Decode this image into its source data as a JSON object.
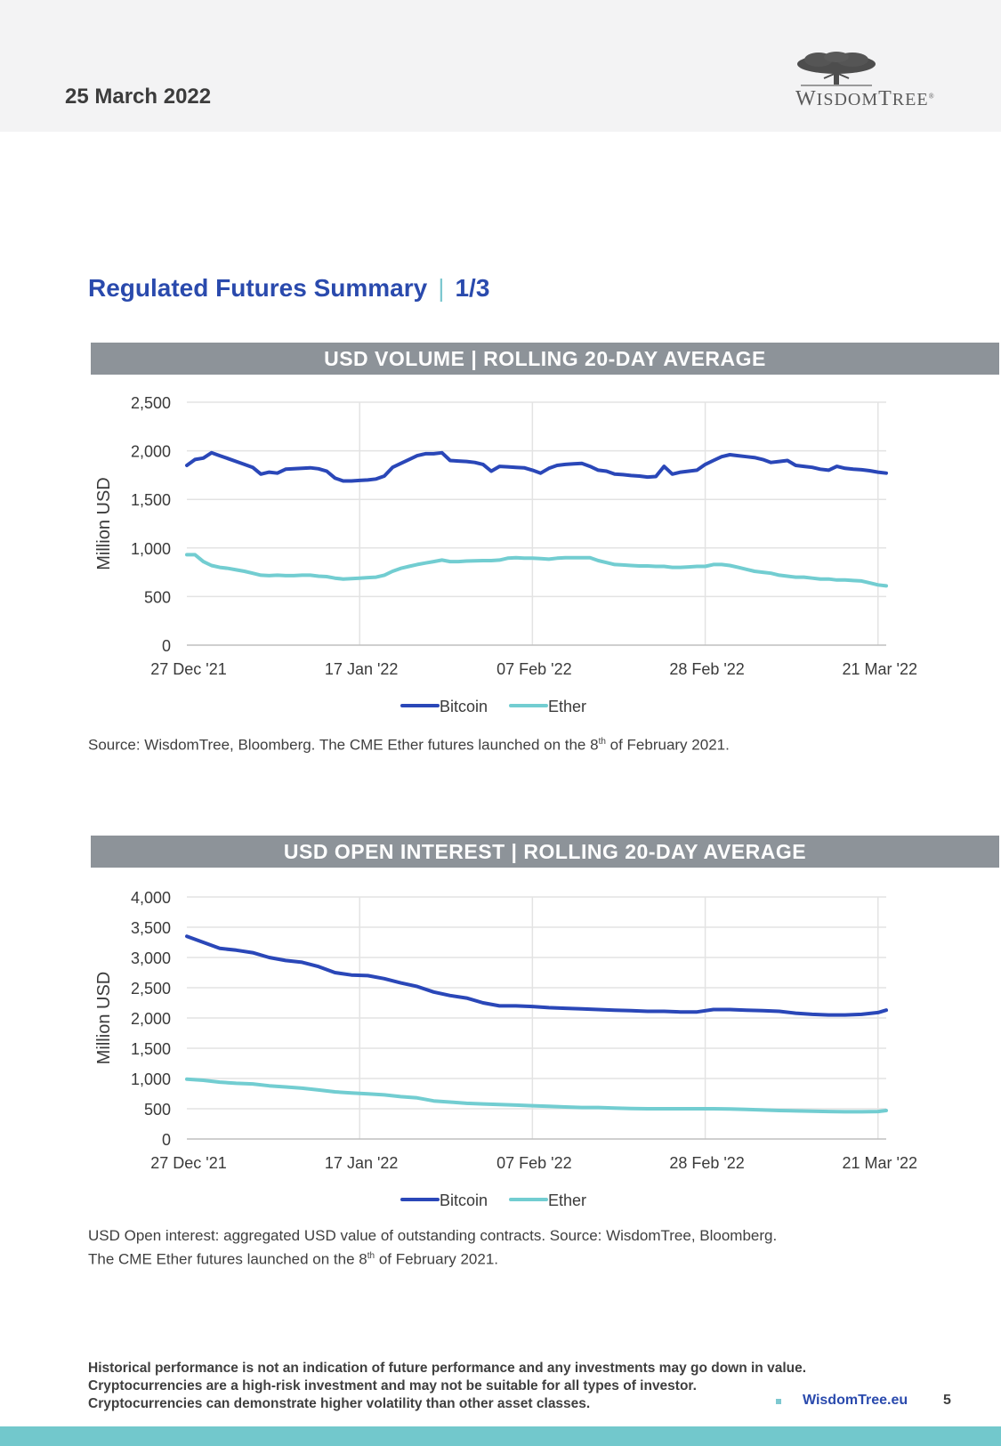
{
  "header": {
    "date": "25 March 2022",
    "logo_text_w": "W",
    "logo_text_isdom": "ISDOM",
    "logo_text_t": "T",
    "logo_text_ree": "REE",
    "logo_trademark": "®"
  },
  "section": {
    "title": "Regulated Futures Summary",
    "separator": "|",
    "page_fraction": "1/3"
  },
  "colors": {
    "bitcoin": "#2a47b8",
    "ether": "#72cdd1",
    "grid": "#e3e3e3",
    "axis": "#bfbfbf",
    "bar": "#8d9399"
  },
  "chart_data": [
    {
      "type": "line",
      "title": "USD VOLUME | ROLLING 20-DAY AVERAGE",
      "ylabel": "Million USD",
      "ylim": [
        0,
        2500
      ],
      "yticks": [
        0,
        500,
        1000,
        1500,
        2000,
        2500
      ],
      "ytick_labels": [
        "0",
        "500",
        "1,000",
        "1,500",
        "2,000",
        "2,500"
      ],
      "xlim": [
        0,
        85
      ],
      "xticks": [
        0,
        21,
        42,
        63,
        84
      ],
      "xtick_labels": [
        "27 Dec '21",
        "17 Jan '22",
        "07 Feb '22",
        "28 Feb '22",
        "21 Mar '22"
      ],
      "grid": true,
      "legend": "bottom-center",
      "series": [
        {
          "name": "Bitcoin",
          "x": [
            0,
            1,
            2,
            3,
            4,
            5,
            6,
            7,
            8,
            9,
            10,
            11,
            12,
            13,
            14,
            15,
            16,
            17,
            18,
            19,
            20,
            21,
            22,
            23,
            24,
            25,
            26,
            27,
            28,
            29,
            30,
            31,
            32,
            33,
            34,
            35,
            36,
            37,
            38,
            39,
            40,
            41,
            42,
            43,
            44,
            45,
            46,
            47,
            48,
            49,
            50,
            51,
            52,
            53,
            54,
            55,
            56,
            57,
            58,
            59,
            60,
            61,
            62,
            63,
            64,
            65,
            66,
            67,
            68,
            69,
            70,
            71,
            72,
            73,
            74,
            75,
            76,
            77,
            78,
            79,
            80,
            81,
            82,
            83,
            84,
            85
          ],
          "values": [
            1850,
            1910,
            1925,
            1980,
            1950,
            1920,
            1890,
            1860,
            1830,
            1760,
            1780,
            1770,
            1810,
            1815,
            1820,
            1825,
            1815,
            1790,
            1720,
            1690,
            1690,
            1695,
            1700,
            1710,
            1740,
            1830,
            1870,
            1910,
            1950,
            1970,
            1970,
            1980,
            1900,
            1895,
            1890,
            1880,
            1860,
            1790,
            1840,
            1835,
            1830,
            1825,
            1800,
            1770,
            1820,
            1850,
            1860,
            1865,
            1870,
            1840,
            1800,
            1790,
            1760,
            1755,
            1745,
            1740,
            1730,
            1735,
            1840,
            1760,
            1780,
            1790,
            1800,
            1860,
            1900,
            1940,
            1960,
            1950,
            1940,
            1930,
            1910,
            1880,
            1890,
            1900,
            1850,
            1840,
            1830,
            1810,
            1800,
            1840,
            1820,
            1810,
            1805,
            1795,
            1780,
            1770
          ]
        },
        {
          "name": "Ether",
          "x": [
            0,
            1,
            2,
            3,
            4,
            5,
            6,
            7,
            8,
            9,
            10,
            11,
            12,
            13,
            14,
            15,
            16,
            17,
            18,
            19,
            20,
            21,
            22,
            23,
            24,
            25,
            26,
            27,
            28,
            29,
            30,
            31,
            32,
            33,
            34,
            35,
            36,
            37,
            38,
            39,
            40,
            41,
            42,
            43,
            44,
            45,
            46,
            47,
            48,
            49,
            50,
            51,
            52,
            53,
            54,
            55,
            56,
            57,
            58,
            59,
            60,
            61,
            62,
            63,
            64,
            65,
            66,
            67,
            68,
            69,
            70,
            71,
            72,
            73,
            74,
            75,
            76,
            77,
            78,
            79,
            80,
            81,
            82,
            83,
            84,
            85
          ],
          "values": [
            930,
            930,
            860,
            820,
            800,
            790,
            775,
            760,
            740,
            720,
            715,
            720,
            715,
            715,
            720,
            720,
            710,
            705,
            690,
            680,
            685,
            690,
            695,
            700,
            720,
            760,
            790,
            810,
            830,
            845,
            860,
            875,
            860,
            860,
            865,
            868,
            870,
            870,
            875,
            895,
            900,
            895,
            895,
            890,
            885,
            895,
            900,
            900,
            900,
            900,
            870,
            850,
            830,
            825,
            820,
            815,
            815,
            810,
            810,
            800,
            800,
            805,
            810,
            810,
            830,
            830,
            820,
            800,
            780,
            760,
            750,
            740,
            720,
            710,
            700,
            700,
            690,
            680,
            680,
            670,
            670,
            665,
            660,
            640,
            620,
            610
          ]
        }
      ]
    },
    {
      "type": "line",
      "title": "USD OPEN INTEREST | ROLLING 20-DAY AVERAGE",
      "ylabel": "Million USD",
      "ylim": [
        0,
        4000
      ],
      "yticks": [
        0,
        500,
        1000,
        1500,
        2000,
        2500,
        3000,
        3500,
        4000
      ],
      "ytick_labels": [
        "0",
        "500",
        "1,000",
        "1,500",
        "2,000",
        "2,500",
        "3,000",
        "3,500",
        "4,000"
      ],
      "xlim": [
        0,
        85
      ],
      "xticks": [
        0,
        21,
        42,
        63,
        84
      ],
      "xtick_labels": [
        "27 Dec '21",
        "17 Jan '22",
        "07 Feb '22",
        "28 Feb '22",
        "21 Mar '22"
      ],
      "grid": true,
      "legend": "bottom-center",
      "series": [
        {
          "name": "Bitcoin",
          "x": [
            0,
            2,
            4,
            6,
            8,
            10,
            12,
            14,
            16,
            18,
            20,
            22,
            24,
            26,
            28,
            30,
            32,
            34,
            36,
            38,
            40,
            42,
            44,
            46,
            48,
            50,
            52,
            54,
            56,
            58,
            60,
            62,
            64,
            66,
            68,
            70,
            72,
            74,
            76,
            78,
            80,
            82,
            84,
            85
          ],
          "values": [
            3350,
            3250,
            3150,
            3120,
            3080,
            3000,
            2950,
            2920,
            2850,
            2750,
            2710,
            2700,
            2650,
            2580,
            2520,
            2430,
            2370,
            2330,
            2250,
            2200,
            2200,
            2190,
            2170,
            2160,
            2150,
            2140,
            2130,
            2120,
            2110,
            2110,
            2100,
            2100,
            2140,
            2140,
            2130,
            2120,
            2110,
            2080,
            2060,
            2050,
            2050,
            2060,
            2090,
            2130
          ]
        },
        {
          "name": "Ether",
          "x": [
            0,
            2,
            4,
            6,
            8,
            10,
            12,
            14,
            16,
            18,
            20,
            22,
            24,
            26,
            28,
            30,
            32,
            34,
            36,
            38,
            40,
            42,
            44,
            46,
            48,
            50,
            52,
            54,
            56,
            58,
            60,
            62,
            64,
            66,
            68,
            70,
            72,
            74,
            76,
            78,
            80,
            82,
            84,
            85
          ],
          "values": [
            990,
            970,
            940,
            920,
            910,
            880,
            860,
            840,
            810,
            780,
            760,
            745,
            730,
            700,
            680,
            630,
            610,
            590,
            580,
            570,
            560,
            550,
            540,
            530,
            520,
            520,
            510,
            505,
            500,
            500,
            500,
            500,
            500,
            495,
            490,
            480,
            470,
            465,
            460,
            455,
            450,
            450,
            455,
            470
          ]
        }
      ]
    }
  ],
  "notes": {
    "volume_source_a": "Source: WisdomTree, Bloomberg. The CME Ether futures launched on the 8",
    "volume_source_sup": "th",
    "volume_source_b": " of February 2021.",
    "oi_line1": "USD Open interest: aggregated USD value of outstanding contracts. Source: WisdomTree, Bloomberg.",
    "oi_line2_a": "The CME Ether futures launched on the 8",
    "oi_line2_sup": "th",
    "oi_line2_b": " of February 2021."
  },
  "footer": {
    "disclaimer": [
      "Historical performance is not an indication of future performance and any investments may go down in value.",
      "Cryptocurrencies are a high-risk investment and may not be suitable for all types of investor.",
      "Cryptocurrencies can demonstrate higher volatility than other asset classes."
    ],
    "link": "WisdomTree.eu",
    "page_number": "5"
  }
}
